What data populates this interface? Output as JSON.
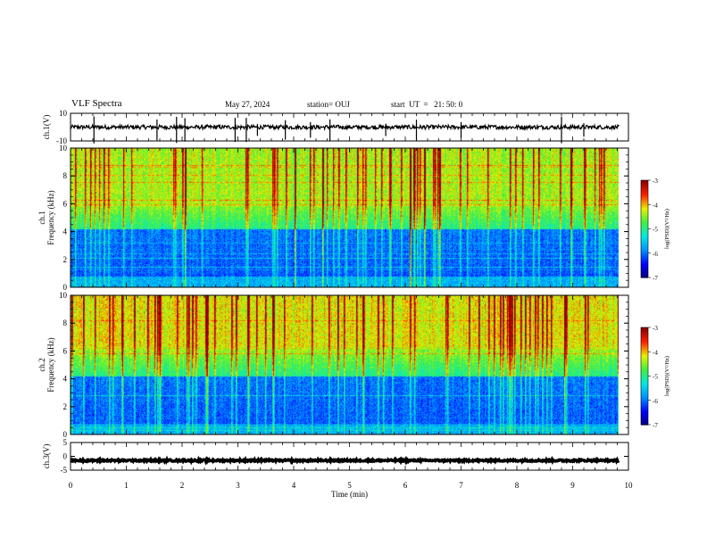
{
  "header": {
    "title": "VLF Spectra",
    "date": "May 27, 2024",
    "station": "station= OUJ",
    "start_ut": "start  UT  =   21: 50: 0"
  },
  "colors": {
    "colormap": [
      "#00007a",
      "#0000ff",
      "#0090ff",
      "#00e8e0",
      "#40f040",
      "#e8f000",
      "#ff2000",
      "#8a0000"
    ]
  },
  "chart_data": [
    {
      "type": "line",
      "panel": "ch1-waveform",
      "ylabel": "ch.1(V)",
      "ylim": [
        -10,
        10
      ],
      "yticks": [
        "10",
        "-10"
      ],
      "xlim": [
        0,
        9.83
      ],
      "baseline": 0,
      "noise_amplitude": 1.5,
      "spike_times": [
        0.42,
        1.55,
        1.9,
        2.05,
        2.95,
        3.15,
        3.35,
        3.85,
        4.3,
        4.65,
        5.65,
        6.2,
        7.0,
        8.8,
        9.2
      ]
    },
    {
      "type": "heatmap",
      "panel": "ch1-spectrogram",
      "ylabel": "ch.1\nFrequency (kHz)",
      "xlim": [
        0,
        9.83
      ],
      "ylim": [
        0,
        10
      ],
      "yticks": [
        "0",
        "2",
        "4",
        "6",
        "8",
        "10"
      ],
      "colorbar_label": "log(PSD)(V²/Hz)",
      "colorbar_range": [
        -7,
        -3
      ],
      "colorbar_ticks": [
        "-3",
        "-4",
        "-5",
        "-6",
        "-7"
      ]
    },
    {
      "type": "heatmap",
      "panel": "ch2-spectrogram",
      "ylabel": "ch.2\nFrequency (kHz)",
      "xlim": [
        0,
        9.83
      ],
      "ylim": [
        0,
        10
      ],
      "yticks": [
        "0",
        "2",
        "4",
        "6",
        "8",
        "10"
      ],
      "colorbar_label": "log(PSD)(V²/Hz)",
      "colorbar_range": [
        -7,
        -3
      ],
      "colorbar_ticks": [
        "-3",
        "-4",
        "-5",
        "-6",
        "-7"
      ]
    },
    {
      "type": "line",
      "panel": "ch3-waveform",
      "ylabel": "ch.3(V)",
      "ylim": [
        -5,
        5
      ],
      "yticks": [
        "5",
        "0",
        "-5"
      ],
      "xlim": [
        0,
        9.83
      ],
      "baseline": -1.5,
      "noise_amplitude": 0.3
    }
  ],
  "x_axis": {
    "label": "Time  (min)",
    "range": [
      0,
      10
    ],
    "ticks": [
      "0",
      "1",
      "2",
      "3",
      "4",
      "5",
      "6",
      "7",
      "8",
      "9",
      "10"
    ]
  }
}
